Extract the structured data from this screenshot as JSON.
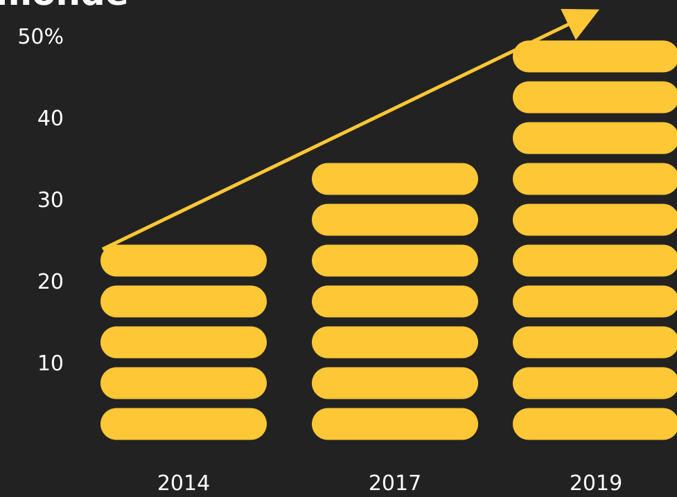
{
  "colors": {
    "background": "#222222",
    "bar": "#fec735",
    "arrow": "#fec735",
    "text": "#ffffff"
  },
  "chart_data": {
    "type": "bar",
    "title": "monde",
    "categories": [
      "2014",
      "2017",
      "2019"
    ],
    "values": [
      25,
      35,
      50
    ],
    "unit_step": 5,
    "ylim": [
      0,
      55
    ],
    "yticks": [
      {
        "value": 10,
        "label": "10"
      },
      {
        "value": 20,
        "label": "20"
      },
      {
        "value": 30,
        "label": "30"
      },
      {
        "value": 40,
        "label": "40"
      },
      {
        "value": 50,
        "label": "50%"
      }
    ],
    "trend_arrow": {
      "from_category": "2014",
      "to_category": "2019",
      "direction": "up"
    },
    "grid": false,
    "legend": "none"
  }
}
